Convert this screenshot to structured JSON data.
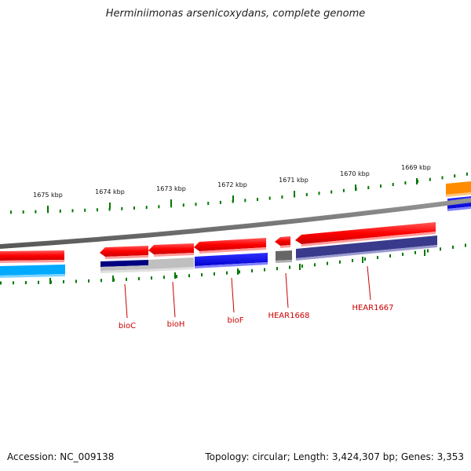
{
  "title": "Herminiimonas arsenicoxydans, complete genome",
  "footer": {
    "accession": "Accession: NC_009138",
    "summary": "Topology: circular; Length: 3,424,307 bp; Genes: 3,353"
  },
  "scale_labels": [
    "1675 kbp",
    "1674 kbp",
    "1673 kbp",
    "1672 kbp",
    "1671 kbp",
    "1670 kbp",
    "1669 kbp"
  ],
  "gene_labels": [
    "bioC",
    "bioH",
    "bioF",
    "HEAR1668",
    "HEAR1667"
  ],
  "colors": {
    "forward": "#ff0000",
    "reverse_blue": "#0000ff",
    "dark_purple": "#3a3a8c",
    "navy": "#000080",
    "grey": "#666666",
    "light_grey": "#bfbfbf",
    "cyan": "#00aaff",
    "orange": "#ff8c00",
    "tick": "#007700",
    "label": "#cc0000"
  }
}
